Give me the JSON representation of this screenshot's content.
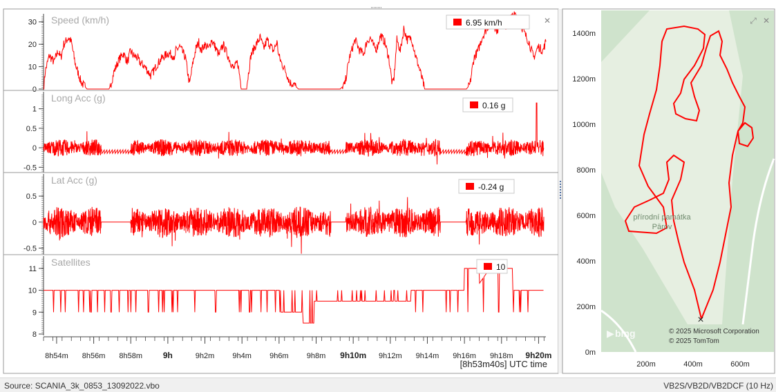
{
  "colors": {
    "trace": "#ff0000",
    "label": "#a8a8a8",
    "axis": "#444444",
    "frame": "#9a9a9a",
    "map_background": "#cfe3cc",
    "map_track_area": "#e6efe1"
  },
  "charts": [
    {
      "id": "speed",
      "title": "Speed (km/h)",
      "readout": "6.95 km/h",
      "ylim": [
        0,
        33
      ],
      "yticks": [
        {
          "v": 0,
          "label": "0"
        },
        {
          "v": 10,
          "label": "10"
        },
        {
          "v": 20,
          "label": "20"
        },
        {
          "v": 30,
          "label": "30"
        }
      ],
      "close_glyph": "✕"
    },
    {
      "id": "long-acc",
      "title": "Long Acc (g)",
      "readout": "0.16 g",
      "ylim": [
        -0.6,
        1.4
      ],
      "yticks": [
        {
          "v": -0.5,
          "label": "-0.5"
        },
        {
          "v": 0,
          "label": "0"
        },
        {
          "v": 0.5,
          "label": "0.5"
        },
        {
          "v": 1,
          "label": "1"
        }
      ]
    },
    {
      "id": "lat-acc",
      "title": "Lat Acc (g)",
      "readout": "-0.24 g",
      "ylim": [
        -0.6,
        0.9
      ],
      "yticks": [
        {
          "v": -0.5,
          "label": "-0.5"
        },
        {
          "v": 0,
          "label": "0"
        },
        {
          "v": 0.5,
          "label": "0.5"
        }
      ]
    },
    {
      "id": "satellites",
      "title": "Satellites",
      "readout": "10",
      "ylim": [
        8,
        11.5
      ],
      "yticks": [
        {
          "v": 8,
          "label": "8"
        },
        {
          "v": 9,
          "label": "9"
        },
        {
          "v": 10,
          "label": "10"
        },
        {
          "v": 11,
          "label": "11"
        }
      ]
    }
  ],
  "chart_data": [
    {
      "type": "line",
      "title": "Speed (km/h)",
      "ylabel": "Speed (km/h)",
      "ylim": [
        0,
        33
      ],
      "x_unit": "minutes after 8h53m40s",
      "x": [
        0,
        0.3,
        1.0,
        1.8,
        2.5,
        3.0,
        3.5,
        4.3,
        4.8,
        5.5,
        6.5,
        7.5,
        8.5,
        9.5,
        10.5,
        11.3,
        11.6,
        12.2,
        13.0,
        13.8,
        14.5,
        15.0,
        15.5,
        16.2,
        16.6,
        17.5,
        18.5,
        19.0,
        19.6,
        20.5,
        21.5,
        22.4,
        22.6,
        22.8,
        23.5,
        24.5,
        25.2,
        25.8,
        26.3,
        26.8,
        27.2,
        27.8,
        28.5,
        29.0,
        29.6,
        30.3,
        31.0,
        31.8,
        32.8,
        33.5,
        34.2,
        35.0,
        35.8,
        36.5,
        37.4,
        38.0,
        38.6,
        39.0,
        39.7,
        40.3,
        40.6,
        41.0,
        41.8,
        42.5,
        43.2,
        44.0,
        45.0,
        45.8,
        46.6,
        47.5,
        48.3,
        49.0,
        49.8,
        50.5,
        51.2,
        52.0,
        52.8,
        53.8,
        54.6,
        55.3,
        55.8,
        56.4,
        57.0,
        57.5,
        58.2,
        58.9,
        59.6,
        60.2,
        60.5,
        61.0,
        61.6,
        62.2,
        62.8,
        63.5,
        64.2,
        65.0,
        65.8,
        66.5,
        67.2,
        67.7,
        68.3,
        68.9,
        69.6,
        70.5,
        71.4,
        72.2,
        73.0,
        73.6,
        74.3,
        75.0,
        75.7,
        76.5,
        77.0,
        77.5,
        78.3,
        79.0,
        79.8,
        80.6,
        81.4,
        82.2,
        83.0,
        83.8,
        84.6,
        85.4,
        86.2,
        86.8
      ],
      "y": [
        0,
        8,
        15,
        12,
        17,
        14,
        20,
        23,
        21,
        11,
        3,
        0,
        0,
        0,
        0,
        0,
        2,
        8,
        13,
        16,
        12,
        17,
        15,
        14,
        12,
        10,
        6,
        8,
        11,
        14,
        16,
        15,
        12,
        17,
        19,
        14,
        2,
        12,
        18,
        21,
        17,
        20,
        18,
        22,
        19,
        15,
        20,
        15,
        9,
        12,
        0,
        0,
        15,
        19,
        23,
        18,
        22,
        20,
        17,
        21,
        15,
        12,
        8,
        3,
        2,
        0,
        0,
        0,
        0,
        0,
        0,
        0,
        0,
        0,
        0,
        2,
        14,
        22,
        17,
        16,
        21,
        23,
        19,
        18,
        24,
        21,
        14,
        2,
        5,
        22,
        17,
        27,
        22,
        23,
        15,
        8,
        0,
        0,
        0,
        0,
        0,
        0,
        0,
        0,
        0,
        0,
        0,
        2,
        14,
        17,
        23,
        27,
        29,
        30,
        26,
        31,
        28,
        32,
        33,
        30,
        25,
        21,
        14,
        19,
        17,
        22
      ]
    },
    {
      "type": "line",
      "title": "Long Acc (g)",
      "ylabel": "Long Acc (g)",
      "ylim": [
        -0.6,
        1.4
      ]
    },
    {
      "type": "line",
      "title": "Lat Acc (g)",
      "ylabel": "Lat Acc (g)",
      "ylim": [
        -0.6,
        0.9
      ]
    },
    {
      "type": "line",
      "title": "Satellites",
      "ylabel": "Satellites",
      "ylim": [
        8,
        11.5
      ]
    }
  ],
  "x_axis": {
    "tick_labels": [
      {
        "minute": 0.333,
        "label": "8h54m",
        "bold": false
      },
      {
        "minute": 2.333,
        "label": "8h56m",
        "bold": false
      },
      {
        "minute": 4.333,
        "label": "8h58m",
        "bold": false
      },
      {
        "minute": 6.333,
        "label": "9h",
        "bold": true
      },
      {
        "minute": 8.333,
        "label": "9h2m",
        "bold": false
      },
      {
        "minute": 10.333,
        "label": "9h4m",
        "bold": false
      },
      {
        "minute": 12.333,
        "label": "9h6m",
        "bold": false
      },
      {
        "minute": 14.333,
        "label": "9h8m",
        "bold": false
      },
      {
        "minute": 16.333,
        "label": "9h10m",
        "bold": true
      },
      {
        "minute": 18.333,
        "label": "9h12m",
        "bold": false
      },
      {
        "minute": 20.333,
        "label": "9h14m",
        "bold": false
      },
      {
        "minute": 22.333,
        "label": "9h16m",
        "bold": false
      },
      {
        "minute": 24.333,
        "label": "9h18m",
        "bold": false
      },
      {
        "minute": 26.333,
        "label": "9h20m",
        "bold": true
      }
    ],
    "cursor_label": "[8h53m40s] UTC time"
  },
  "map": {
    "y_ticks": [
      "1400m",
      "1200m",
      "1000m",
      "800m",
      "600m",
      "400m",
      "200m",
      "0m"
    ],
    "x_ticks": [
      "200m",
      "400m",
      "600m"
    ],
    "place_label_line1": "přírodní památka",
    "place_label_line2": "Pārov",
    "copyright1": "© 2025 Microsoft Corporation",
    "copyright2": "© 2025 TomTom",
    "bing_logo": "bing",
    "expand_glyph": "⤢",
    "close_glyph": "✕",
    "start_marker": "×"
  },
  "status": {
    "source": "Source: SCANIA_3k_0853_13092022.vbo",
    "device": "VB2S/VB2D/VB2DCF (10 Hz)"
  }
}
